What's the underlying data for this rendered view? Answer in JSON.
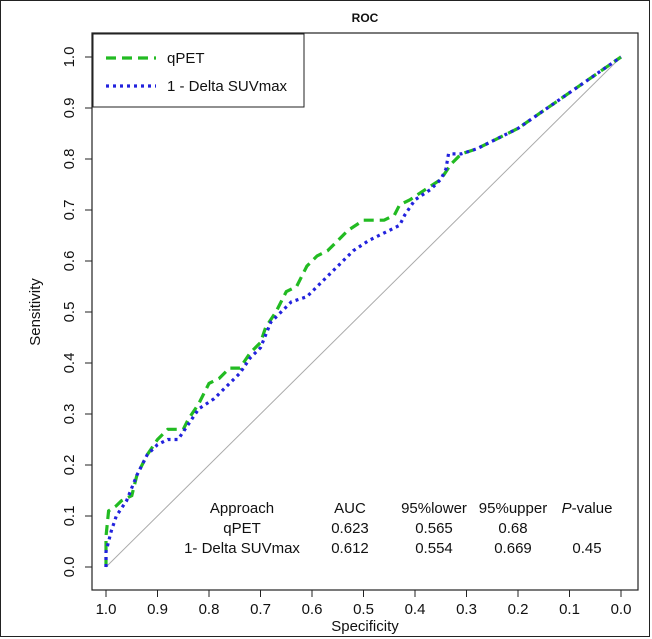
{
  "chart_data": {
    "type": "line",
    "title": "ROC",
    "xlabel": "Specificity",
    "ylabel": "Sensitivity",
    "xlim": [
      1.0,
      0.0
    ],
    "ylim": [
      0.0,
      1.0
    ],
    "x_reversed": true,
    "xticks": [
      "1.0",
      "0.9",
      "0.8",
      "0.7",
      "0.6",
      "0.5",
      "0.4",
      "0.3",
      "0.2",
      "0.1",
      "0.0"
    ],
    "yticks": [
      "0.0",
      "0.1",
      "0.2",
      "0.3",
      "0.4",
      "0.5",
      "0.6",
      "0.7",
      "0.8",
      "0.9",
      "1.0"
    ],
    "grid": false,
    "legend_position": "top-left",
    "diagonal_reference": true,
    "series": [
      {
        "name": "qPET",
        "color": "#22bb22",
        "style": "dashed",
        "points": [
          [
            1.0,
            0.0
          ],
          [
            1.0,
            0.06
          ],
          [
            0.995,
            0.11
          ],
          [
            0.98,
            0.12
          ],
          [
            0.97,
            0.13
          ],
          [
            0.95,
            0.14
          ],
          [
            0.94,
            0.18
          ],
          [
            0.92,
            0.22
          ],
          [
            0.9,
            0.25
          ],
          [
            0.88,
            0.27
          ],
          [
            0.85,
            0.27
          ],
          [
            0.84,
            0.29
          ],
          [
            0.82,
            0.32
          ],
          [
            0.8,
            0.36
          ],
          [
            0.78,
            0.37
          ],
          [
            0.76,
            0.39
          ],
          [
            0.74,
            0.39
          ],
          [
            0.72,
            0.42
          ],
          [
            0.7,
            0.44
          ],
          [
            0.69,
            0.47
          ],
          [
            0.67,
            0.5
          ],
          [
            0.65,
            0.54
          ],
          [
            0.63,
            0.55
          ],
          [
            0.61,
            0.59
          ],
          [
            0.59,
            0.61
          ],
          [
            0.57,
            0.62
          ],
          [
            0.55,
            0.64
          ],
          [
            0.53,
            0.66
          ],
          [
            0.5,
            0.68
          ],
          [
            0.46,
            0.68
          ],
          [
            0.44,
            0.69
          ],
          [
            0.43,
            0.71
          ],
          [
            0.41,
            0.72
          ],
          [
            0.38,
            0.74
          ],
          [
            0.35,
            0.76
          ],
          [
            0.33,
            0.79
          ],
          [
            0.31,
            0.81
          ],
          [
            0.28,
            0.82
          ],
          [
            0.2,
            0.86
          ],
          [
            0.1,
            0.93
          ],
          [
            0.0,
            1.0
          ]
        ]
      },
      {
        "name": "1 - Delta SUVmax",
        "color": "#2222dd",
        "style": "dotted",
        "points": [
          [
            1.0,
            0.0
          ],
          [
            1.0,
            0.03
          ],
          [
            0.99,
            0.07
          ],
          [
            0.98,
            0.1
          ],
          [
            0.96,
            0.13
          ],
          [
            0.94,
            0.18
          ],
          [
            0.92,
            0.22
          ],
          [
            0.9,
            0.24
          ],
          [
            0.88,
            0.25
          ],
          [
            0.86,
            0.25
          ],
          [
            0.84,
            0.28
          ],
          [
            0.82,
            0.31
          ],
          [
            0.79,
            0.33
          ],
          [
            0.77,
            0.35
          ],
          [
            0.74,
            0.38
          ],
          [
            0.72,
            0.41
          ],
          [
            0.7,
            0.43
          ],
          [
            0.68,
            0.48
          ],
          [
            0.66,
            0.5
          ],
          [
            0.64,
            0.52
          ],
          [
            0.61,
            0.53
          ],
          [
            0.58,
            0.56
          ],
          [
            0.55,
            0.59
          ],
          [
            0.52,
            0.62
          ],
          [
            0.49,
            0.64
          ],
          [
            0.47,
            0.65
          ],
          [
            0.45,
            0.66
          ],
          [
            0.43,
            0.67
          ],
          [
            0.42,
            0.69
          ],
          [
            0.4,
            0.72
          ],
          [
            0.37,
            0.74
          ],
          [
            0.35,
            0.76
          ],
          [
            0.34,
            0.78
          ],
          [
            0.335,
            0.81
          ],
          [
            0.31,
            0.81
          ],
          [
            0.28,
            0.82
          ],
          [
            0.2,
            0.86
          ],
          [
            0.1,
            0.93
          ],
          [
            0.0,
            1.0
          ]
        ]
      }
    ],
    "table": {
      "headers": [
        "Approach",
        "AUC",
        "95%lower",
        "95%upper",
        "P-value"
      ],
      "rows": [
        [
          "qPET",
          "0.623",
          "0.565",
          "0.68",
          ""
        ],
        [
          "1- Delta SUVmax",
          "0.612",
          "0.554",
          "0.669",
          "0.45"
        ]
      ]
    }
  }
}
